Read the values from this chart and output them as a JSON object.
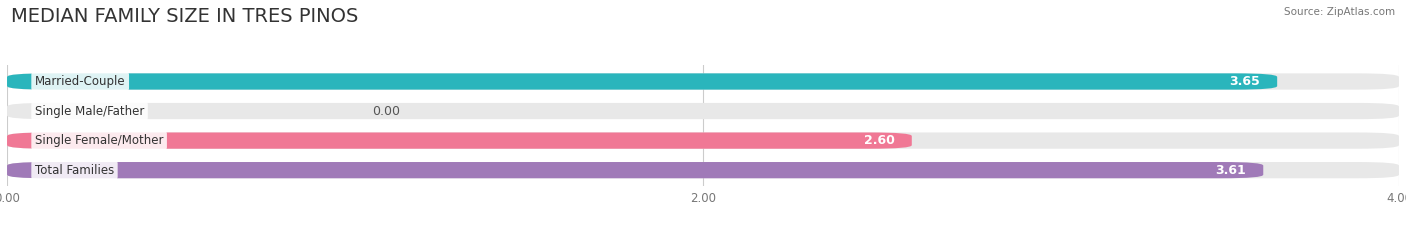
{
  "title": "MEDIAN FAMILY SIZE IN TRES PINOS",
  "source": "Source: ZipAtlas.com",
  "categories": [
    "Married-Couple",
    "Single Male/Father",
    "Single Female/Mother",
    "Total Families"
  ],
  "values": [
    3.65,
    0.0,
    2.6,
    3.61
  ],
  "bar_colors": [
    "#2ab5bc",
    "#a8b8e8",
    "#f07895",
    "#a07ab8"
  ],
  "xlim": [
    0,
    4.0
  ],
  "xticks": [
    0.0,
    2.0,
    4.0
  ],
  "xtick_labels": [
    "0.00",
    "2.00",
    "4.00"
  ],
  "background_color": "#ffffff",
  "bar_background_color": "#e8e8e8",
  "label_fontsize": 8.5,
  "value_fontsize": 9,
  "title_fontsize": 14
}
